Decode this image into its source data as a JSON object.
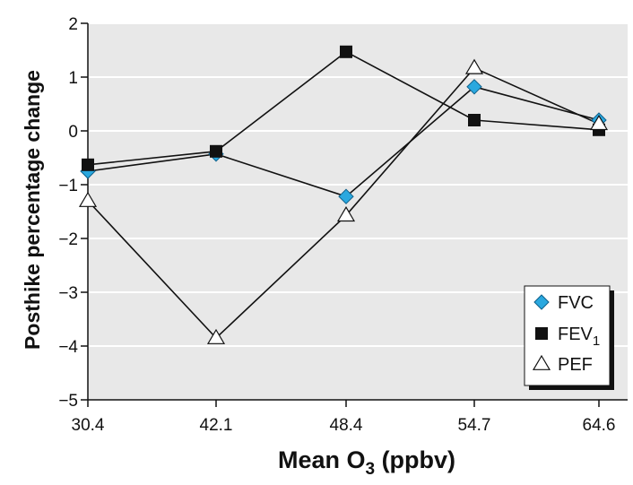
{
  "chart_data": {
    "type": "line",
    "title": "",
    "xlabel_main": "Mean O",
    "xlabel_sub": "3",
    "xlabel_unit": " (ppbv)",
    "ylabel": "Posthike percentage change",
    "categories": [
      "30.4",
      "42.1",
      "48.4",
      "54.7",
      "64.6"
    ],
    "ylim": [
      -5,
      2
    ],
    "yticks": [
      "2",
      "1",
      "0",
      "−1",
      "−2",
      "−3",
      "−4",
      "−5"
    ],
    "grid": true,
    "legend_position": "lower-right",
    "series": [
      {
        "name": "FVC",
        "name_sub": "",
        "marker": "diamond",
        "values": [
          -0.75,
          -0.43,
          -1.22,
          0.82,
          0.2
        ]
      },
      {
        "name": "FEV",
        "name_sub": "1",
        "marker": "square",
        "values": [
          -0.63,
          -0.38,
          1.47,
          0.2,
          0.02
        ]
      },
      {
        "name": "PEF",
        "name_sub": "",
        "marker": "triangle",
        "values": [
          -1.3,
          -3.85,
          -1.57,
          1.17,
          0.13
        ]
      }
    ],
    "colors": {
      "plot_bg": "#e8e8e8",
      "grid": "#ffffff",
      "line": "#111111",
      "fvc_fill": "#2aa8df",
      "fev_fill": "#111111",
      "pef_fill": "#ffffff"
    }
  }
}
